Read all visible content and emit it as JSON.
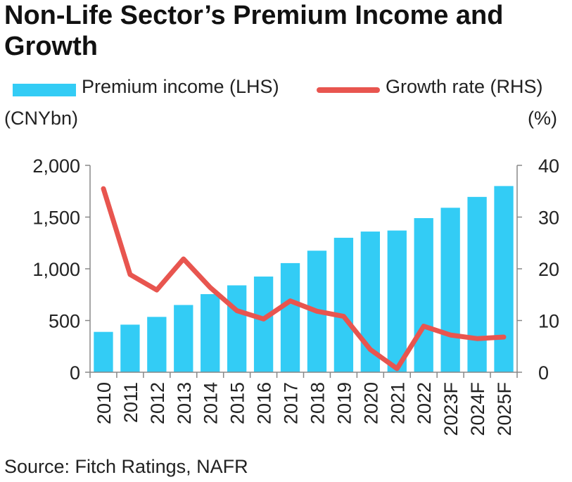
{
  "title": "Non-Life Sector’s Premium Income and Growth",
  "legend": {
    "bar_label": "Premium income (LHS)",
    "line_label": "Growth rate (RHS)"
  },
  "units": {
    "left": "(CNYbn)",
    "right": "(%)"
  },
  "source": "Source: Fitch Ratings, NAFR",
  "colors": {
    "bar": "#33ccf5",
    "line": "#e8554f",
    "axis": "#888888"
  },
  "chart_data": {
    "type": "bar",
    "categories": [
      "2010",
      "2011",
      "2012",
      "2013",
      "2014",
      "2015",
      "2016",
      "2017",
      "2018",
      "2019",
      "2020",
      "2021",
      "2022",
      "2023F",
      "2024F",
      "2025F"
    ],
    "series": [
      {
        "name": "Premium income (LHS)",
        "type": "bar",
        "axis": "left",
        "values": [
          390,
          460,
          535,
          650,
          755,
          840,
          925,
          1055,
          1175,
          1300,
          1360,
          1370,
          1490,
          1590,
          1695,
          1800
        ]
      },
      {
        "name": "Growth rate (RHS)",
        "type": "line",
        "axis": "right",
        "values": [
          35.5,
          18.9,
          15.9,
          21.9,
          16.4,
          11.9,
          10.3,
          13.8,
          11.8,
          10.8,
          4.4,
          0.7,
          8.9,
          7.2,
          6.5,
          6.8
        ]
      }
    ],
    "ylim_left": [
      0,
      2000
    ],
    "ylim_right": [
      0,
      40
    ],
    "yticks_left": [
      "0",
      "500",
      "1,000",
      "1,500",
      "2,000"
    ],
    "yticks_right": [
      "0",
      "10",
      "20",
      "30",
      "40"
    ],
    "grid": false,
    "legend_position": "top"
  }
}
